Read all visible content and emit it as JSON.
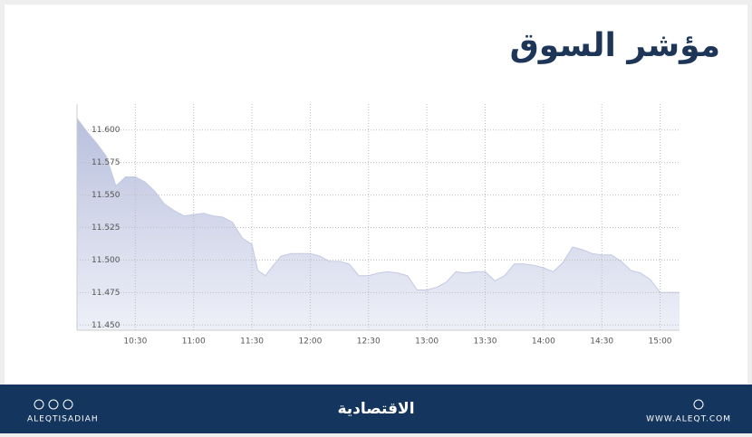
{
  "chart_data": {
    "type": "area",
    "title": "مؤشر السوق",
    "x": [
      "10:00",
      "10:05",
      "10:10",
      "10:15",
      "10:20",
      "10:25",
      "10:30",
      "10:35",
      "10:40",
      "10:45",
      "10:50",
      "10:55",
      "11:00",
      "11:05",
      "11:10",
      "11:15",
      "11:20",
      "11:25",
      "11:30",
      "11:33",
      "11:37",
      "11:40",
      "11:45",
      "11:50",
      "11:55",
      "12:00",
      "12:05",
      "12:10",
      "12:15",
      "12:20",
      "12:25",
      "12:30",
      "12:35",
      "12:40",
      "12:45",
      "12:50",
      "12:55",
      "13:00",
      "13:05",
      "13:10",
      "13:15",
      "13:20",
      "13:25",
      "13:30",
      "13:35",
      "13:40",
      "13:45",
      "13:50",
      "13:55",
      "14:00",
      "14:05",
      "14:10",
      "14:15",
      "14:20",
      "14:25",
      "14:30",
      "14:35",
      "14:40",
      "14:45",
      "14:50",
      "14:55",
      "15:00",
      "15:05",
      "15:10"
    ],
    "values": [
      11.609,
      11.599,
      11.59,
      11.58,
      11.557,
      11.564,
      11.564,
      11.56,
      11.553,
      11.543,
      11.538,
      11.534,
      11.535,
      11.536,
      11.534,
      11.533,
      11.529,
      11.517,
      11.512,
      11.492,
      11.488,
      11.494,
      11.503,
      11.505,
      11.505,
      11.505,
      11.503,
      11.499,
      11.499,
      11.497,
      11.488,
      11.488,
      11.49,
      11.491,
      11.49,
      11.488,
      11.477,
      11.477,
      11.479,
      11.483,
      11.491,
      11.49,
      11.491,
      11.491,
      11.484,
      11.488,
      11.497,
      11.497,
      11.496,
      11.494,
      11.491,
      11.498,
      11.51,
      11.508,
      11.505,
      11.504,
      11.504,
      11.499,
      11.492,
      11.49,
      11.485,
      11.475,
      11.475,
      11.475
    ],
    "color": "#c3c9e2",
    "xlim": [
      "10:00",
      "15:10"
    ],
    "xticks": [
      "10:30",
      "11:00",
      "11:30",
      "12:00",
      "12:30",
      "13:00",
      "13:30",
      "14:00",
      "14:30",
      "15:00"
    ],
    "ylim": [
      11.446,
      11.62
    ],
    "yticks": [
      {
        "value": 11.45,
        "label": "11.450"
      },
      {
        "value": 11.475,
        "label": "11.475"
      },
      {
        "value": 11.5,
        "label": "11.500"
      },
      {
        "value": 11.525,
        "label": "11.525"
      },
      {
        "value": 11.55,
        "label": "11.550"
      },
      {
        "value": 11.575,
        "label": "11.575"
      },
      {
        "value": 11.6,
        "label": "11.600"
      }
    ],
    "grid": true
  },
  "footer": {
    "handle": "ALEQTISADIAH",
    "logo": "الاقتصادية",
    "website": "WWW.ALEQT.COM"
  }
}
